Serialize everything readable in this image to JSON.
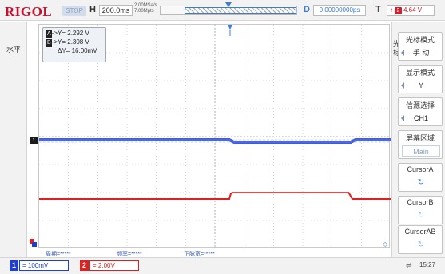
{
  "header": {
    "brand": "RIGOL",
    "run_state": "STOP",
    "horizontal_label": "H",
    "timebase": "200.0ms",
    "sample_rate": "2.00MSa/s",
    "memory_depth": "7.00Mpts",
    "delay_label": "D",
    "delay": "0.00000000ps",
    "trigger_label": "T",
    "trigger_edge": "↑",
    "trigger_source": "2",
    "trigger_level": "4.64 V"
  },
  "left_panel": {
    "tab_label": "水平",
    "ch1_ground_marker": "1"
  },
  "cursor_readout": {
    "a_tag": "A",
    "a_text": "->Y= 2.292 V",
    "b_tag": "B",
    "b_text": "->Y= 2.308 V",
    "delta": "ΔY= 16.00mV"
  },
  "measurements": {
    "period": "周期=*****",
    "frequency": "频率=*****",
    "pulse_width": "正脉宽=*****"
  },
  "right_menu": {
    "tab_label": "光标",
    "items": [
      {
        "title": "光标模式",
        "value": "手 动"
      },
      {
        "title": "显示模式",
        "value": "Y"
      },
      {
        "title": "信源选择",
        "value": "CH1"
      },
      {
        "title": "屏幕区域",
        "value": "Main"
      },
      {
        "title": "CursorA",
        "value": "↻"
      },
      {
        "title": "CursorB",
        "value": "↻"
      },
      {
        "title": "CursorAB",
        "value": "↻"
      }
    ]
  },
  "bottom": {
    "ch1_number": "1",
    "ch1_scale": "= 100mV",
    "ch2_number": "2",
    "ch2_scale": "= 2.00V",
    "time": "15:27"
  },
  "colors": {
    "ch1": "#1f3fd0",
    "ch2": "#e02020",
    "accent": "#3a7bd5",
    "brand": "#c8102e"
  },
  "icons": {
    "usb": "usb-icon",
    "knob": "rotate-knob-icon"
  }
}
